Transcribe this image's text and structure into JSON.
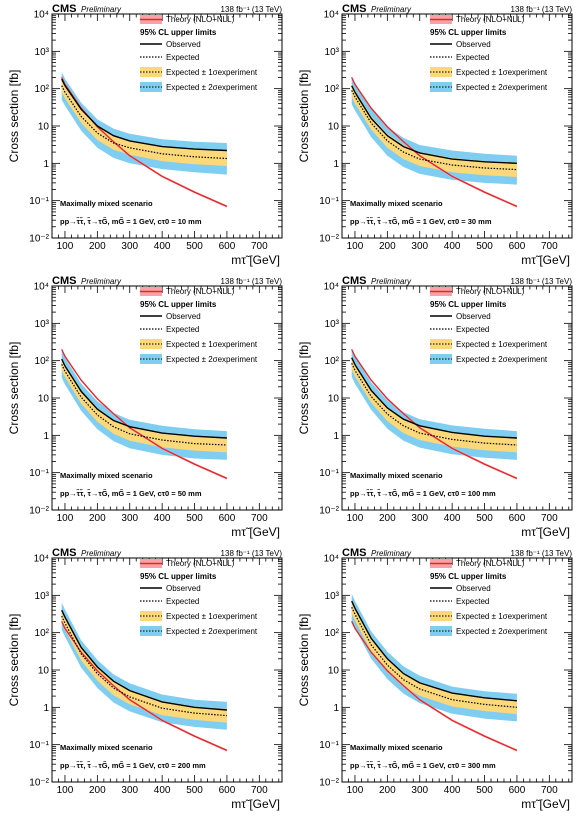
{
  "chart_data": [
    {
      "type": "line",
      "header": {
        "experiment": "CMS",
        "status": "Preliminary",
        "luminosity": "138 fb⁻¹ (13 TeV)"
      },
      "ylabel": "Cross section [fb]",
      "xlabel": "mτ̃ [GeV]",
      "yscale": "log",
      "xlim": [
        60,
        770
      ],
      "ylim": [
        0.01,
        10000
      ],
      "xticks": [
        "100",
        "200",
        "300",
        "400",
        "500",
        "600",
        "700"
      ],
      "yticks": [
        "10⁻²",
        "10⁻¹",
        "1",
        "10",
        "10²",
        "10³",
        "10⁴"
      ],
      "legend_title": "95% CL upper limits",
      "legend": {
        "theory": "Theory (NLO+NLL)",
        "observed": "Observed",
        "expected": "Expected",
        "one_sigma": "Expected ± 1σexperiment",
        "two_sigma": "Expected ± 2σexperiment"
      },
      "scenario": "Maximally mixed scenario",
      "process": "pp→τ̃τ̃, τ̃→τG̃, mG̃ = 1 GeV, cτ0 = 10 mm",
      "x": [
        90,
        100,
        150,
        200,
        250,
        300,
        400,
        500,
        600
      ],
      "series": [
        {
          "name": "Theory (NLO+NLL)",
          "values": [
            200,
            130,
            30,
            9.5,
            3.8,
            1.6,
            0.45,
            0.17,
            0.07
          ]
        },
        {
          "name": "Observed",
          "values": [
            180,
            120,
            28,
            10,
            5.5,
            4,
            2.8,
            2.4,
            2.2
          ]
        },
        {
          "name": "Expected",
          "values": [
            120,
            80,
            18,
            6.5,
            3.5,
            2.6,
            1.8,
            1.5,
            1.35
          ]
        },
        {
          "name": "Expected ± 1σ low",
          "values": [
            80,
            55,
            12,
            4.2,
            2.3,
            1.7,
            1.15,
            0.95,
            0.85
          ]
        },
        {
          "name": "Expected ± 1σ high",
          "values": [
            180,
            120,
            28,
            10,
            5.5,
            4,
            2.8,
            2.4,
            2.2
          ]
        },
        {
          "name": "Expected ± 2σ low",
          "values": [
            50,
            35,
            7.5,
            2.6,
            1.4,
            1.0,
            0.7,
            0.58,
            0.5
          ]
        },
        {
          "name": "Expected ± 2σ high",
          "values": [
            280,
            185,
            42,
            15,
            8.5,
            6.2,
            4.4,
            3.8,
            3.5
          ]
        }
      ]
    },
    {
      "type": "line",
      "header": {
        "experiment": "CMS",
        "status": "Preliminary",
        "luminosity": "138 fb⁻¹ (13 TeV)"
      },
      "ylabel": "Cross section [fb]",
      "xlabel": "mτ̃ [GeV]",
      "yscale": "log",
      "xlim": [
        60,
        770
      ],
      "ylim": [
        0.01,
        10000
      ],
      "xticks": [
        "100",
        "200",
        "300",
        "400",
        "500",
        "600",
        "700"
      ],
      "yticks": [
        "10⁻²",
        "10⁻¹",
        "1",
        "10",
        "10²",
        "10³",
        "10⁴"
      ],
      "legend_title": "95% CL upper limits",
      "legend": {
        "theory": "Theory (NLO+NLL)",
        "observed": "Observed",
        "expected": "Expected",
        "one_sigma": "Expected ± 1σexperiment",
        "two_sigma": "Expected ± 2σexperiment"
      },
      "scenario": "Maximally mixed scenario",
      "process": "pp→τ̃τ̃, τ̃→τG̃, mG̃ = 1 GeV, cτ0 = 30 mm",
      "x": [
        90,
        100,
        150,
        200,
        250,
        300,
        400,
        500,
        600
      ],
      "series": [
        {
          "name": "Theory (NLO+NLL)",
          "values": [
            200,
            130,
            30,
            9.5,
            3.8,
            1.6,
            0.45,
            0.17,
            0.07
          ]
        },
        {
          "name": "Observed",
          "values": [
            120,
            80,
            16,
            5.5,
            2.8,
            1.9,
            1.3,
            1.1,
            1.0
          ]
        },
        {
          "name": "Expected",
          "values": [
            90,
            60,
            12,
            4.0,
            2.0,
            1.3,
            0.9,
            0.75,
            0.68
          ]
        },
        {
          "name": "Expected ± 1σ low",
          "values": [
            60,
            40,
            8,
            2.6,
            1.3,
            0.85,
            0.58,
            0.48,
            0.43
          ]
        },
        {
          "name": "Expected ± 1σ high",
          "values": [
            135,
            90,
            18,
            6.1,
            3.1,
            2.0,
            1.4,
            1.15,
            1.05
          ]
        },
        {
          "name": "Expected ± 2σ low",
          "values": [
            38,
            26,
            5,
            1.6,
            0.8,
            0.52,
            0.36,
            0.3,
            0.27
          ]
        },
        {
          "name": "Expected ± 2σ high",
          "values": [
            210,
            140,
            28,
            9.5,
            4.8,
            3.1,
            2.2,
            1.8,
            1.6
          ]
        }
      ]
    },
    {
      "type": "line",
      "header": {
        "experiment": "CMS",
        "status": "Preliminary",
        "luminosity": "138 fb⁻¹ (13 TeV)"
      },
      "ylabel": "Cross section [fb]",
      "xlabel": "mτ̃ [GeV]",
      "yscale": "log",
      "xlim": [
        60,
        770
      ],
      "ylim": [
        0.01,
        10000
      ],
      "xticks": [
        "100",
        "200",
        "300",
        "400",
        "500",
        "600",
        "700"
      ],
      "yticks": [
        "10⁻²",
        "10⁻¹",
        "1",
        "10",
        "10²",
        "10³",
        "10⁴"
      ],
      "legend_title": "95% CL upper limits",
      "legend": {
        "theory": "Theory (NLO+NLL)",
        "observed": "Observed",
        "expected": "Expected",
        "one_sigma": "Expected ± 1σexperiment",
        "two_sigma": "Expected ± 2σexperiment"
      },
      "scenario": "Maximally mixed scenario",
      "process": "pp→τ̃τ̃, τ̃→τG̃, mG̃ = 1 GeV, cτ0 = 50 mm",
      "x": [
        90,
        100,
        150,
        200,
        250,
        300,
        400,
        500,
        600
      ],
      "series": [
        {
          "name": "Theory (NLO+NLL)",
          "values": [
            200,
            130,
            30,
            9.5,
            3.8,
            1.6,
            0.45,
            0.17,
            0.07
          ]
        },
        {
          "name": "Observed",
          "values": [
            110,
            72,
            15,
            5.0,
            2.5,
            1.7,
            1.15,
            0.95,
            0.85
          ]
        },
        {
          "name": "Expected",
          "values": [
            80,
            52,
            10.5,
            3.5,
            1.7,
            1.1,
            0.75,
            0.6,
            0.55
          ]
        },
        {
          "name": "Expected ± 1σ low",
          "values": [
            55,
            36,
            7,
            2.3,
            1.1,
            0.72,
            0.48,
            0.39,
            0.35
          ]
        },
        {
          "name": "Expected ± 1σ high",
          "values": [
            120,
            78,
            16,
            5.3,
            2.6,
            1.7,
            1.15,
            0.92,
            0.85
          ]
        },
        {
          "name": "Expected ± 2σ low",
          "values": [
            35,
            23,
            4.5,
            1.45,
            0.7,
            0.45,
            0.3,
            0.24,
            0.22
          ]
        },
        {
          "name": "Expected ± 2σ high",
          "values": [
            185,
            120,
            24,
            8.2,
            4.0,
            2.6,
            1.8,
            1.45,
            1.3
          ]
        }
      ]
    },
    {
      "type": "line",
      "header": {
        "experiment": "CMS",
        "status": "Preliminary",
        "luminosity": "138 fb⁻¹ (13 TeV)"
      },
      "ylabel": "Cross section [fb]",
      "xlabel": "mτ̃ [GeV]",
      "yscale": "log",
      "xlim": [
        60,
        770
      ],
      "ylim": [
        0.01,
        10000
      ],
      "xticks": [
        "100",
        "200",
        "300",
        "400",
        "500",
        "600",
        "700"
      ],
      "yticks": [
        "10⁻²",
        "10⁻¹",
        "1",
        "10",
        "10²",
        "10³",
        "10⁴"
      ],
      "legend_title": "95% CL upper limits",
      "legend": {
        "theory": "Theory (NLO+NLL)",
        "observed": "Observed",
        "expected": "Expected",
        "one_sigma": "Expected ± 1σexperiment",
        "two_sigma": "Expected ± 2σexperiment"
      },
      "scenario": "Maximally mixed scenario",
      "process": "pp→τ̃τ̃, τ̃→τG̃, mG̃ = 1 GeV, cτ0 = 100 mm",
      "x": [
        90,
        100,
        150,
        200,
        250,
        300,
        400,
        500,
        600
      ],
      "series": [
        {
          "name": "Theory (NLO+NLL)",
          "values": [
            200,
            130,
            30,
            9.5,
            3.8,
            1.6,
            0.45,
            0.17,
            0.07
          ]
        },
        {
          "name": "Observed",
          "values": [
            120,
            78,
            16,
            5.4,
            2.7,
            1.8,
            1.2,
            0.95,
            0.85
          ]
        },
        {
          "name": "Expected",
          "values": [
            85,
            55,
            11,
            3.7,
            1.8,
            1.15,
            0.78,
            0.62,
            0.55
          ]
        },
        {
          "name": "Expected ± 1σ low",
          "values": [
            58,
            38,
            7.5,
            2.4,
            1.15,
            0.75,
            0.5,
            0.4,
            0.35
          ]
        },
        {
          "name": "Expected ± 1σ high",
          "values": [
            128,
            82,
            17,
            5.6,
            2.7,
            1.75,
            1.2,
            0.95,
            0.85
          ]
        },
        {
          "name": "Expected ± 2σ low",
          "values": [
            37,
            24,
            4.8,
            1.5,
            0.72,
            0.47,
            0.31,
            0.25,
            0.22
          ]
        },
        {
          "name": "Expected ± 2σ high",
          "values": [
            195,
            125,
            26,
            8.6,
            4.2,
            2.7,
            1.85,
            1.5,
            1.3
          ]
        }
      ]
    },
    {
      "type": "line",
      "header": {
        "experiment": "CMS",
        "status": "Preliminary",
        "luminosity": "138 fb⁻¹ (13 TeV)"
      },
      "ylabel": "Cross section [fb]",
      "xlabel": "mτ̃ [GeV]",
      "yscale": "log",
      "xlim": [
        60,
        770
      ],
      "ylim": [
        0.01,
        10000
      ],
      "xticks": [
        "100",
        "200",
        "300",
        "400",
        "500",
        "600",
        "700"
      ],
      "yticks": [
        "10⁻²",
        "10⁻¹",
        "1",
        "10",
        "10²",
        "10³",
        "10⁴"
      ],
      "legend_title": "95% CL upper limits",
      "legend": {
        "theory": "Theory (NLO+NLL)",
        "observed": "Observed",
        "expected": "Expected",
        "one_sigma": "Expected ± 1σexperiment",
        "two_sigma": "Expected ± 2σexperiment"
      },
      "scenario": "Maximally mixed scenario",
      "process": "pp→τ̃τ̃, τ̃→τG̃, mG̃ = 1 GeV, cτ0 = 200 mm",
      "x": [
        90,
        100,
        150,
        200,
        250,
        300,
        400,
        500,
        600
      ],
      "series": [
        {
          "name": "Theory (NLO+NLL)",
          "values": [
            200,
            130,
            30,
            9.5,
            3.8,
            1.6,
            0.45,
            0.17,
            0.07
          ]
        },
        {
          "name": "Observed",
          "values": [
            400,
            260,
            40,
            12,
            5.0,
            2.8,
            1.4,
            1.0,
            0.85
          ]
        },
        {
          "name": "Expected",
          "values": [
            280,
            180,
            27,
            8.0,
            3.3,
            1.9,
            0.95,
            0.7,
            0.6
          ]
        },
        {
          "name": "Expected ± 1σ low",
          "values": [
            190,
            120,
            18,
            5.2,
            2.1,
            1.2,
            0.62,
            0.46,
            0.39
          ]
        },
        {
          "name": "Expected ± 1σ high",
          "values": [
            420,
            270,
            41,
            12.2,
            5.0,
            2.9,
            1.45,
            1.05,
            0.9
          ]
        },
        {
          "name": "Expected ± 2σ low",
          "values": [
            120,
            78,
            11.5,
            3.3,
            1.35,
            0.78,
            0.4,
            0.3,
            0.25
          ]
        },
        {
          "name": "Expected ± 2σ high",
          "values": [
            640,
            410,
            62,
            18.5,
            7.6,
            4.4,
            2.2,
            1.6,
            1.4
          ]
        }
      ]
    },
    {
      "type": "line",
      "header": {
        "experiment": "CMS",
        "status": "Preliminary",
        "luminosity": "138 fb⁻¹ (13 TeV)"
      },
      "ylabel": "Cross section [fb]",
      "xlabel": "mτ̃ [GeV]",
      "yscale": "log",
      "xlim": [
        60,
        770
      ],
      "ylim": [
        0.01,
        10000
      ],
      "xticks": [
        "100",
        "200",
        "300",
        "400",
        "500",
        "600",
        "700"
      ],
      "yticks": [
        "10⁻²",
        "10⁻¹",
        "1",
        "10",
        "10²",
        "10³",
        "10⁴"
      ],
      "legend_title": "95% CL upper limits",
      "legend": {
        "theory": "Theory (NLO+NLL)",
        "observed": "Observed",
        "expected": "Expected",
        "one_sigma": "Expected ± 1σexperiment",
        "two_sigma": "Expected ± 2σexperiment"
      },
      "scenario": "Maximally mixed scenario",
      "process": "pp→τ̃τ̃, τ̃→τG̃, mG̃ = 1 GeV, cτ0 = 300 mm",
      "x": [
        90,
        100,
        150,
        200,
        250,
        300,
        400,
        500,
        600
      ],
      "series": [
        {
          "name": "Theory (NLO+NLL)",
          "values": [
            200,
            130,
            30,
            9.5,
            3.8,
            1.6,
            0.45,
            0.17,
            0.07
          ]
        },
        {
          "name": "Observed",
          "values": [
            700,
            450,
            70,
            20,
            8.0,
            4.5,
            2.4,
            1.8,
            1.5
          ]
        },
        {
          "name": "Expected",
          "values": [
            480,
            310,
            47,
            13.5,
            5.5,
            3.1,
            1.6,
            1.2,
            1.0
          ]
        },
        {
          "name": "Expected ± 1σ low",
          "values": [
            320,
            210,
            31,
            9.0,
            3.6,
            2.05,
            1.05,
            0.8,
            0.66
          ]
        },
        {
          "name": "Expected ± 1σ high",
          "values": [
            720,
            460,
            71,
            20,
            8.2,
            4.6,
            2.4,
            1.8,
            1.5
          ]
        },
        {
          "name": "Expected ± 2σ low",
          "values": [
            200,
            130,
            20,
            5.7,
            2.3,
            1.3,
            0.67,
            0.5,
            0.42
          ]
        },
        {
          "name": "Expected ± 2σ high",
          "values": [
            1100,
            700,
            108,
            31,
            12.5,
            7.0,
            3.6,
            2.7,
            2.3
          ]
        }
      ]
    }
  ]
}
